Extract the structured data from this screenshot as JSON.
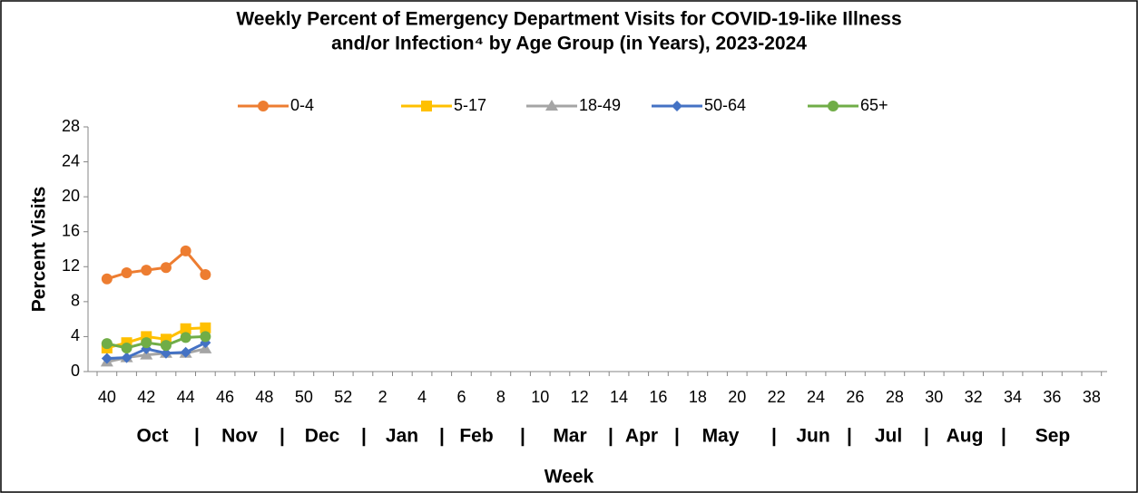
{
  "chart_data": {
    "type": "line",
    "title": [
      "Weekly Percent of Emergency Department Visits for COVID-19-like Illness",
      "and/or Infection⁴ by Age Group (in Years), 2023-2024"
    ],
    "xlabel": "Week",
    "ylabel": "Percent Visits",
    "categories": [
      "40",
      null,
      "42",
      null,
      "44",
      null,
      "46",
      null,
      "48",
      null,
      "50",
      null,
      "52",
      null,
      "2",
      null,
      "4",
      null,
      "6",
      null,
      "8",
      null,
      "10",
      null,
      "12",
      null,
      "14",
      null,
      "16",
      null,
      "18",
      null,
      "20",
      null,
      "22",
      null,
      "24",
      null,
      "26",
      null,
      "28",
      null,
      "30",
      null,
      "32",
      null,
      "34",
      null,
      "36",
      null,
      "38",
      null
    ],
    "month_labels": [
      "Oct",
      "|",
      "Nov",
      "|",
      "Dec",
      "|",
      "Jan",
      "|",
      "Feb",
      "|",
      "Mar",
      "|",
      "Apr",
      "|",
      "May",
      "|",
      "Jun",
      "|",
      "Jul",
      "|",
      "Aug",
      "|",
      "Sep"
    ],
    "ylim": [
      0,
      28
    ],
    "yticks": [
      0,
      4,
      8,
      12,
      16,
      20,
      24,
      28
    ],
    "legend": "top",
    "series": [
      {
        "name": "0-4",
        "color": "#ED7D31",
        "marker": "circle",
        "values": [
          10.6,
          11.3,
          11.6,
          11.9,
          13.8,
          11.1,
          null,
          null,
          null,
          null,
          null,
          null,
          null,
          null,
          null,
          null,
          null,
          null,
          null,
          null,
          null,
          null,
          null,
          null,
          null,
          null,
          null,
          null,
          null,
          null,
          null,
          null,
          null,
          null,
          null,
          null,
          null,
          null,
          null,
          null,
          null,
          null,
          null,
          null,
          null,
          null,
          null,
          null,
          null,
          null,
          null,
          null
        ]
      },
      {
        "name": "5-17",
        "color": "#FFC000",
        "marker": "square",
        "values": [
          2.7,
          3.3,
          4.0,
          3.7,
          4.9,
          5.0,
          null,
          null,
          null,
          null,
          null,
          null,
          null,
          null,
          null,
          null,
          null,
          null,
          null,
          null,
          null,
          null,
          null,
          null,
          null,
          null,
          null,
          null,
          null,
          null,
          null,
          null,
          null,
          null,
          null,
          null,
          null,
          null,
          null,
          null,
          null,
          null,
          null,
          null,
          null,
          null,
          null,
          null,
          null,
          null,
          null,
          null
        ]
      },
      {
        "name": "18-49",
        "color": "#A5A5A5",
        "marker": "triangle",
        "values": [
          1.1,
          1.6,
          1.9,
          2.1,
          2.1,
          2.6,
          null,
          null,
          null,
          null,
          null,
          null,
          null,
          null,
          null,
          null,
          null,
          null,
          null,
          null,
          null,
          null,
          null,
          null,
          null,
          null,
          null,
          null,
          null,
          null,
          null,
          null,
          null,
          null,
          null,
          null,
          null,
          null,
          null,
          null,
          null,
          null,
          null,
          null,
          null,
          null,
          null,
          null,
          null,
          null,
          null,
          null
        ]
      },
      {
        "name": "50-64",
        "color": "#4472C4",
        "marker": "diamond",
        "values": [
          1.5,
          1.6,
          2.6,
          2.1,
          2.2,
          3.3,
          null,
          null,
          null,
          null,
          null,
          null,
          null,
          null,
          null,
          null,
          null,
          null,
          null,
          null,
          null,
          null,
          null,
          null,
          null,
          null,
          null,
          null,
          null,
          null,
          null,
          null,
          null,
          null,
          null,
          null,
          null,
          null,
          null,
          null,
          null,
          null,
          null,
          null,
          null,
          null,
          null,
          null,
          null,
          null,
          null,
          null
        ]
      },
      {
        "name": "65+",
        "color": "#70AD47",
        "marker": "circle",
        "values": [
          3.2,
          2.7,
          3.3,
          3.0,
          3.9,
          4.0,
          null,
          null,
          null,
          null,
          null,
          null,
          null,
          null,
          null,
          null,
          null,
          null,
          null,
          null,
          null,
          null,
          null,
          null,
          null,
          null,
          null,
          null,
          null,
          null,
          null,
          null,
          null,
          null,
          null,
          null,
          null,
          null,
          null,
          null,
          null,
          null,
          null,
          null,
          null,
          null,
          null,
          null,
          null,
          null,
          null,
          null
        ]
      }
    ]
  }
}
